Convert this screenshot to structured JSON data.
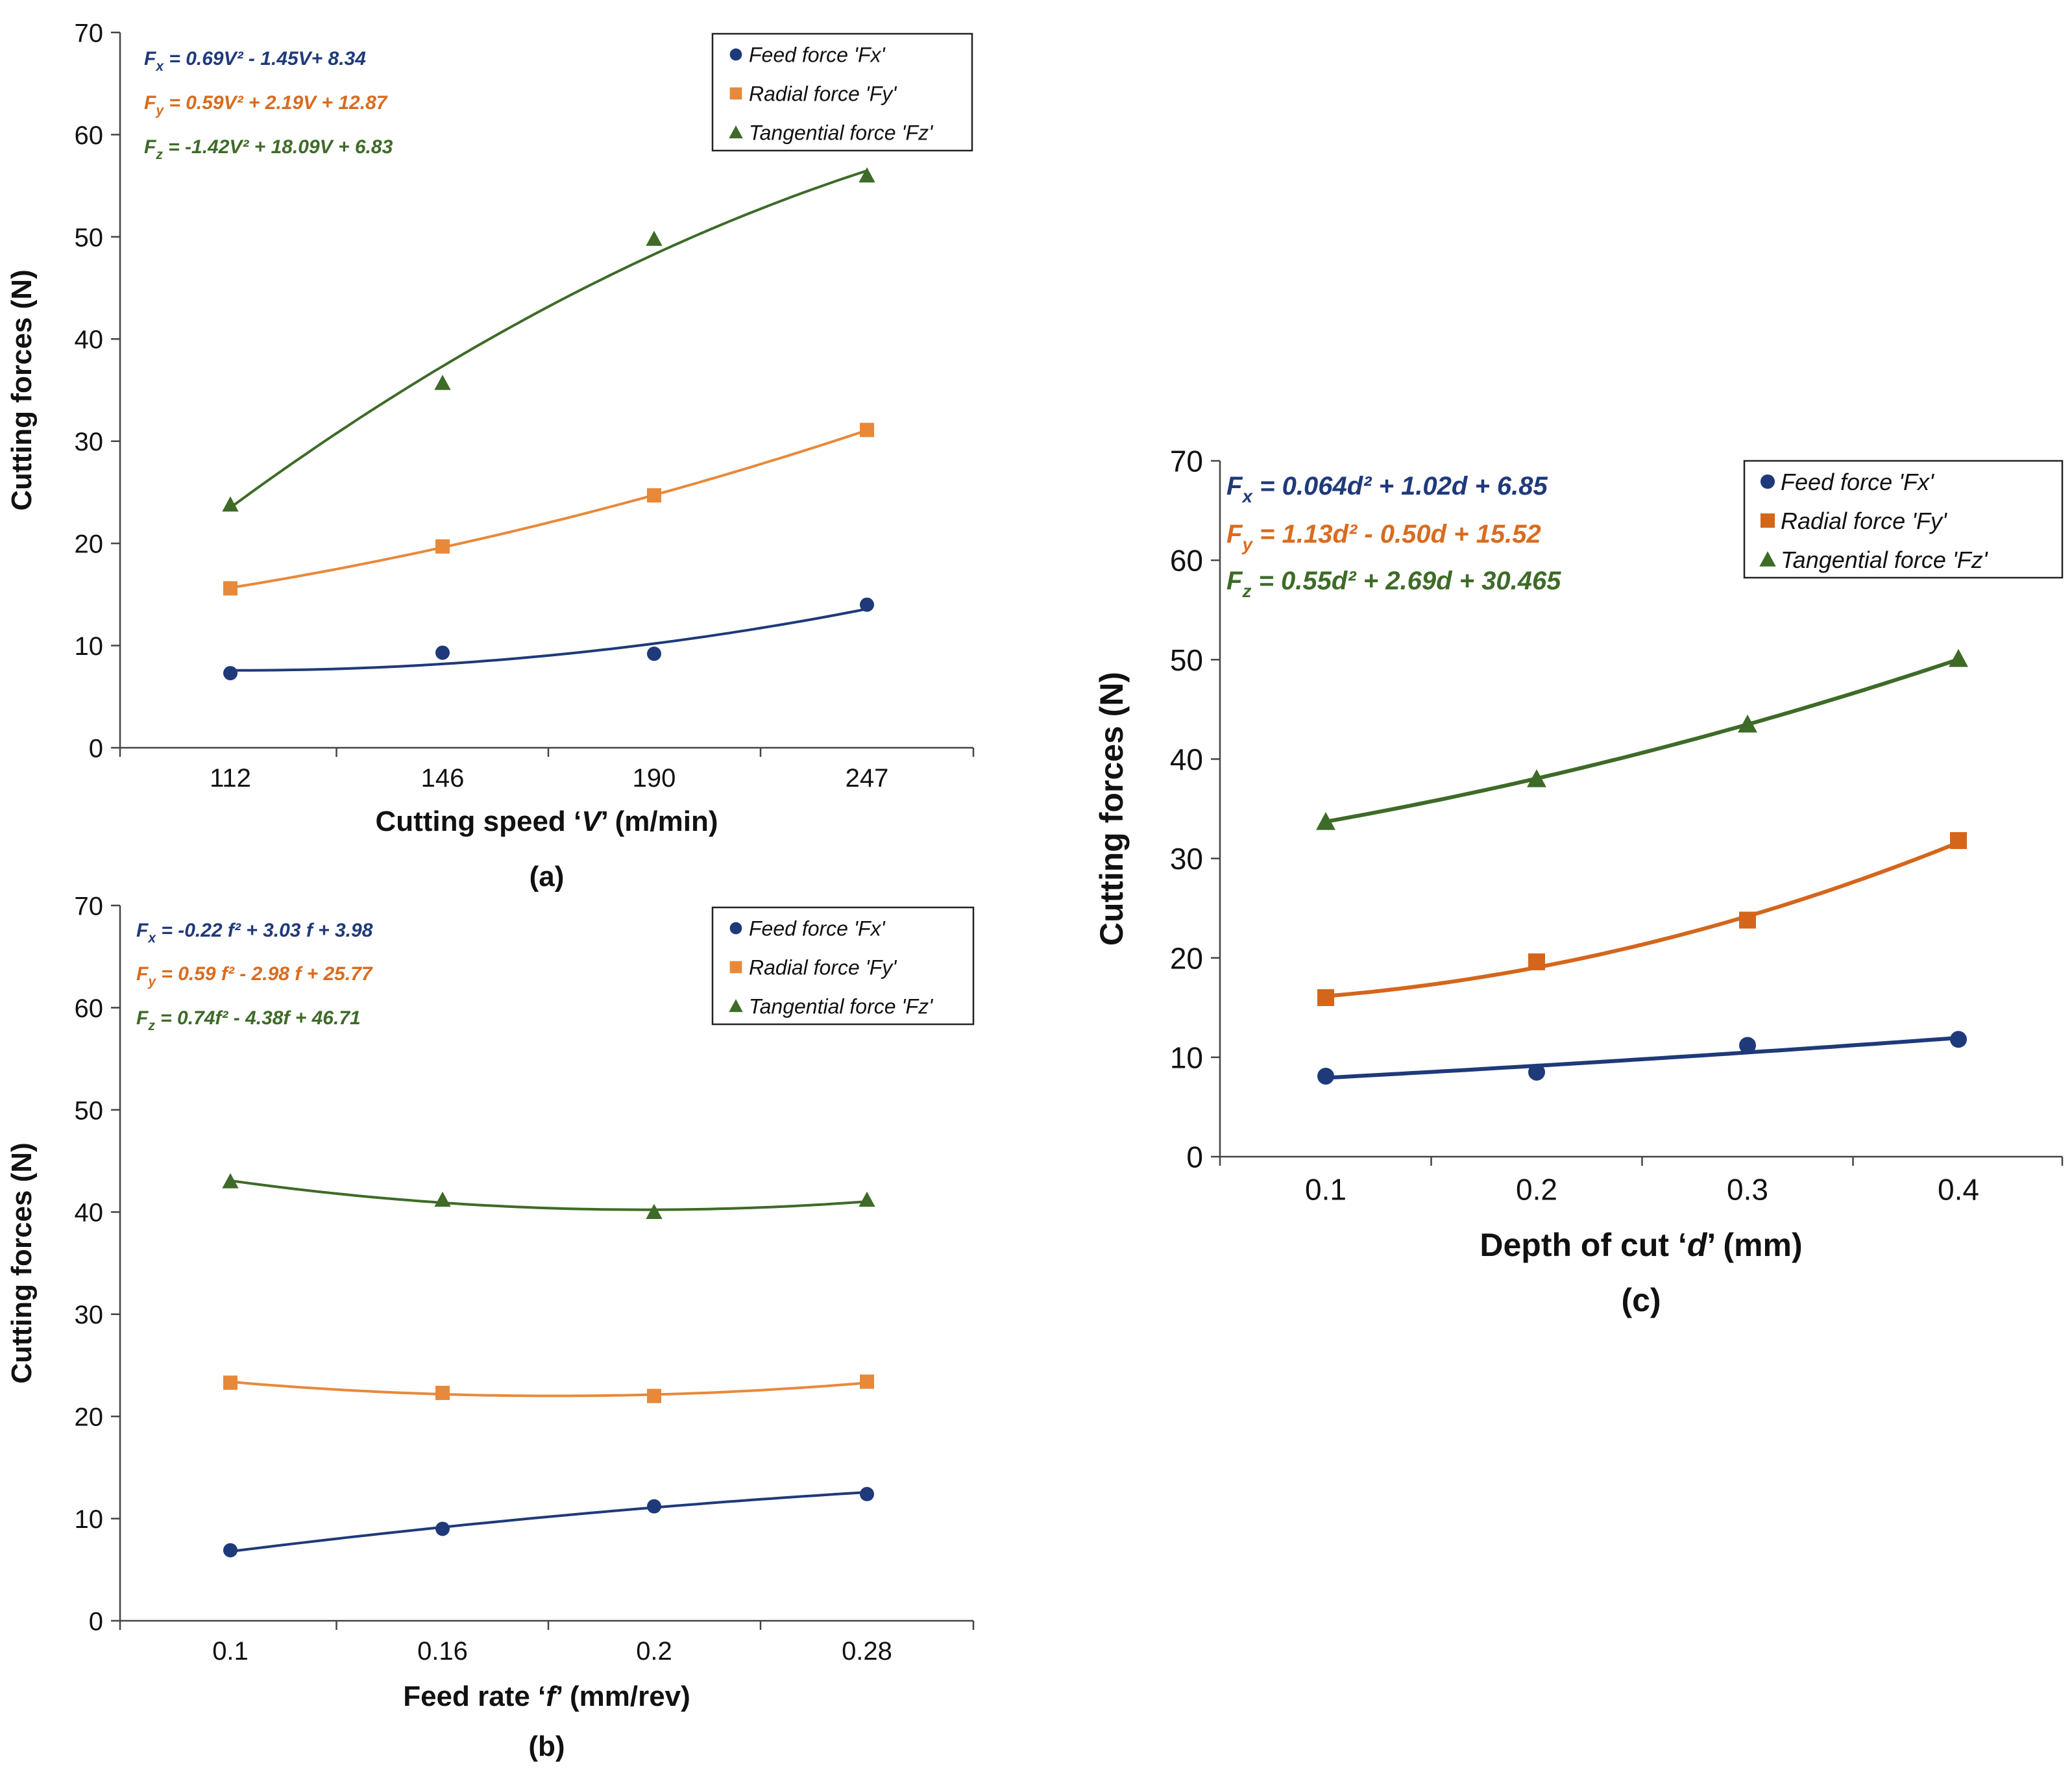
{
  "colors": {
    "fx": "#1f3a7a",
    "fy": "#e8893a",
    "fz": "#3e6b28",
    "fy_c": "#d4661c",
    "fx_eq": "#1f3a7a",
    "fy_eq": "#d86c20",
    "fz_eq": "#3e6b28"
  },
  "chart_data": [
    {
      "type": "scatter",
      "panel_label": "(a)",
      "xlabel_parts": [
        "Cutting speed ‘",
        "V",
        "’ (m/min)"
      ],
      "ylabel": "Cutting forces (N)",
      "ylim": [
        0,
        70
      ],
      "yticks": [
        "0",
        "10",
        "20",
        "30",
        "40",
        "50",
        "60",
        "70"
      ],
      "categories": [
        "112",
        "146",
        "190",
        "247"
      ],
      "legend_position": "top-right",
      "legend": [
        "Feed force 'Fx'",
        "Radial force 'Fy'",
        "Tangential  force 'Fz'"
      ],
      "equations": [
        {
          "sym": "F",
          "sub": "x",
          "rest": " = 0.69V² - 1.45V+ 8.34"
        },
        {
          "sym": "F",
          "sub": "y",
          "rest": " = 0.59V² + 2.19V + 12.87"
        },
        {
          "sym": "F",
          "sub": "z",
          "rest": " = -1.42V² + 18.09V + 6.83"
        }
      ],
      "series": [
        {
          "name": "Feed force 'Fx'",
          "marker": "circle",
          "values": [
            7.3,
            9.3,
            9.2,
            14.0
          ],
          "fit": [
            0.69,
            -1.45,
            8.34
          ]
        },
        {
          "name": "Radial force 'Fy'",
          "marker": "square",
          "values": [
            15.6,
            19.7,
            24.7,
            31.1
          ],
          "fit": [
            0.59,
            2.19,
            12.87
          ]
        },
        {
          "name": "Tangential  force 'Fz'",
          "marker": "triangle",
          "values": [
            23.8,
            35.7,
            49.8,
            56.0
          ],
          "fit": [
            -1.42,
            18.09,
            6.83
          ]
        }
      ]
    },
    {
      "type": "scatter",
      "panel_label": "(b)",
      "xlabel_parts": [
        "Feed rate ‘",
        "f",
        "’ (mm/rev)"
      ],
      "ylabel": "Cutting forces (N)",
      "ylim": [
        0,
        70
      ],
      "yticks": [
        "0",
        "10",
        "20",
        "30",
        "40",
        "50",
        "60",
        "70"
      ],
      "categories": [
        "0.1",
        "0.16",
        "0.2",
        "0.28"
      ],
      "legend_position": "top-right",
      "legend": [
        "Feed force 'Fx'",
        "Radial force 'Fy'",
        "Tangential  force 'Fz'"
      ],
      "equations": [
        {
          "sym": "F",
          "sub": "x",
          "rest": " = -0.22 f² + 3.03 f + 3.98"
        },
        {
          "sym": "F",
          "sub": "y",
          "rest": " = 0.59 f² - 2.98 f + 25.77"
        },
        {
          "sym": "F",
          "sub": "z",
          "rest": " = 0.74f² - 4.38f + 46.71"
        }
      ],
      "series": [
        {
          "name": "Feed force 'Fx'",
          "marker": "circle",
          "values": [
            6.9,
            9.0,
            11.2,
            12.4
          ],
          "fit": [
            -0.22,
            3.03,
            3.98
          ]
        },
        {
          "name": "Radial force 'Fy'",
          "marker": "square",
          "values": [
            23.3,
            22.3,
            22.0,
            23.4
          ],
          "fit": [
            0.59,
            -2.98,
            25.77
          ]
        },
        {
          "name": "Tangential  force 'Fz'",
          "marker": "triangle",
          "values": [
            43.0,
            41.2,
            40.0,
            41.2
          ],
          "fit": [
            0.74,
            -4.38,
            46.71
          ]
        }
      ]
    },
    {
      "type": "scatter",
      "panel_label": "(c)",
      "xlabel_parts": [
        "Depth of cut ‘",
        "d",
        "’ (mm)"
      ],
      "ylabel": "Cutting forces (N)",
      "ylim": [
        0,
        70
      ],
      "yticks": [
        "0",
        "10",
        "20",
        "30",
        "40",
        "50",
        "60",
        "70"
      ],
      "categories": [
        "0.1",
        "0.2",
        "0.3",
        "0.4"
      ],
      "legend_position": "top-right",
      "legend": [
        "Feed force 'Fx'",
        "Radial force 'Fy'",
        "Tangential  force 'Fz'"
      ],
      "equations": [
        {
          "sym": "F",
          "sub": "x",
          "rest": " = 0.064d² + 1.02d + 6.85"
        },
        {
          "sym": "F",
          "sub": "y",
          "rest": " = 1.13d² - 0.50d + 15.52"
        },
        {
          "sym": "F",
          "sub": "z",
          "rest": " = 0.55d² + 2.69d + 30.465"
        }
      ],
      "series": [
        {
          "name": "Feed force 'Fx'",
          "marker": "circle",
          "values": [
            8.1,
            8.5,
            11.2,
            11.8
          ],
          "fit": [
            0.064,
            1.02,
            6.85
          ]
        },
        {
          "name": "Radial force 'Fy'",
          "marker": "square",
          "values": [
            16.0,
            19.6,
            23.8,
            31.8
          ],
          "fit": [
            1.13,
            -0.5,
            15.52
          ]
        },
        {
          "name": "Tangential  force 'Fz'",
          "marker": "triangle",
          "values": [
            33.7,
            38.0,
            43.5,
            50.1
          ],
          "fit": [
            0.55,
            2.69,
            30.465
          ]
        }
      ]
    }
  ]
}
